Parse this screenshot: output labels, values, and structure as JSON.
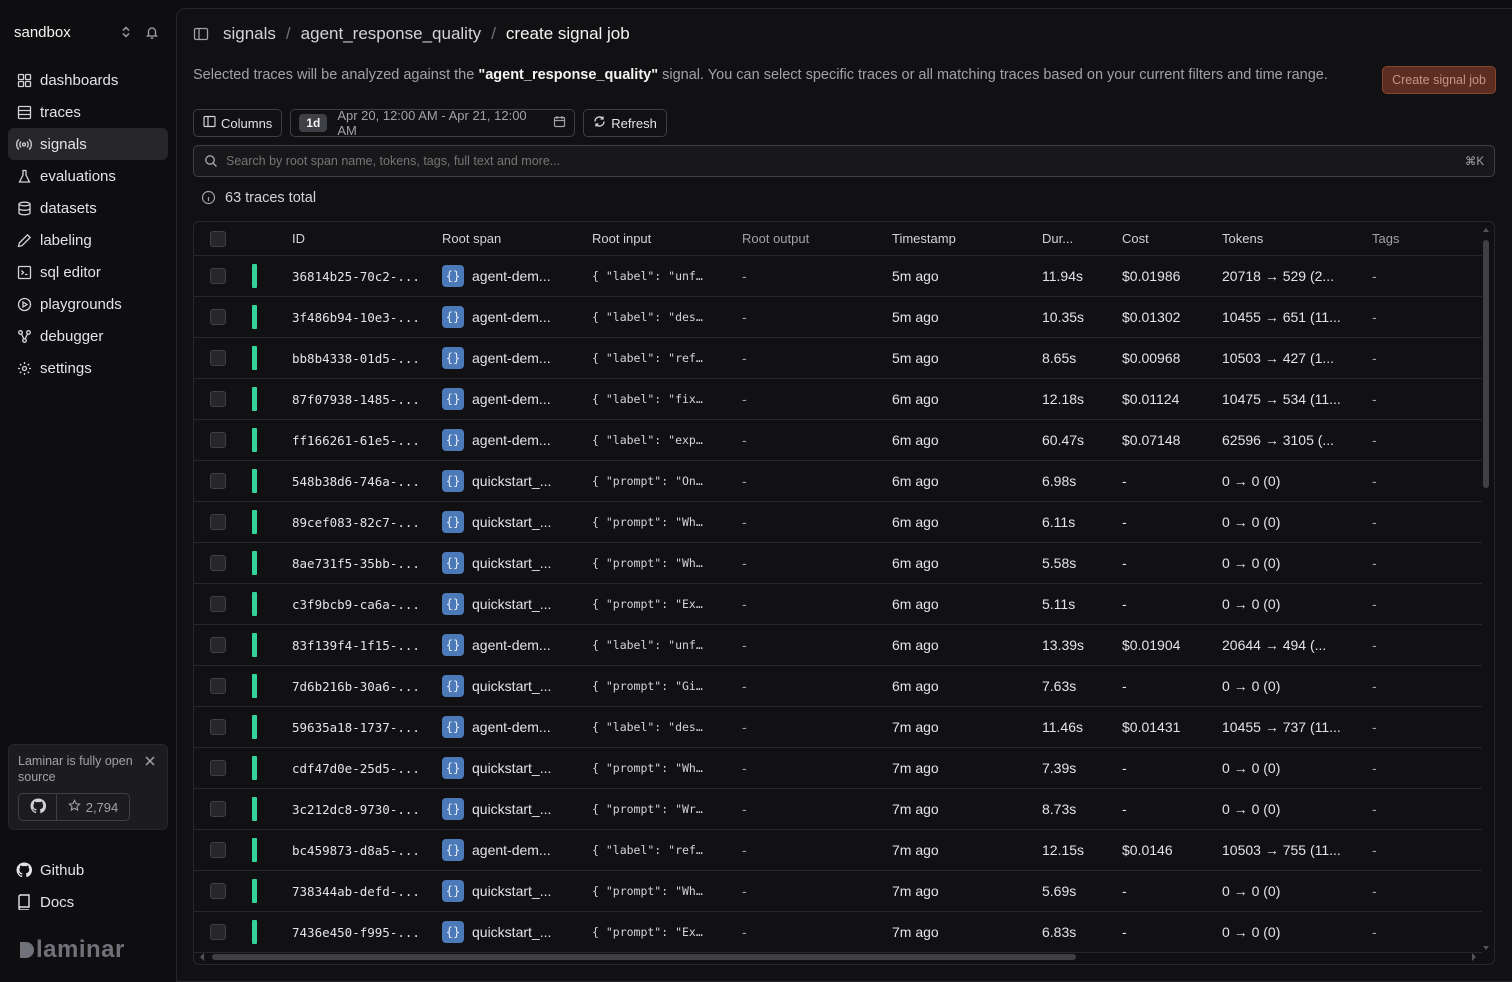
{
  "workspace": {
    "name": "sandbox"
  },
  "nav": {
    "items": [
      {
        "label": "dashboards",
        "icon": "dashboard-icon"
      },
      {
        "label": "traces",
        "icon": "list-icon"
      },
      {
        "label": "signals",
        "icon": "radio-icon",
        "active": true
      },
      {
        "label": "evaluations",
        "icon": "flask-icon"
      },
      {
        "label": "datasets",
        "icon": "database-icon"
      },
      {
        "label": "labeling",
        "icon": "pen-icon"
      },
      {
        "label": "sql editor",
        "icon": "terminal-icon"
      },
      {
        "label": "playgrounds",
        "icon": "play-icon"
      },
      {
        "label": "debugger",
        "icon": "graph-icon"
      },
      {
        "label": "settings",
        "icon": "gear-icon"
      }
    ]
  },
  "promo": {
    "text": "Laminar is fully open source",
    "stars": "2,794"
  },
  "bottom_links": {
    "github": "Github",
    "docs": "Docs"
  },
  "logo": {
    "text": "laminar"
  },
  "breadcrumb": {
    "c1": "signals",
    "c2": "agent_response_quality",
    "c3": "create signal job"
  },
  "description": {
    "prefix": "Selected traces will be analyzed against the ",
    "signal": "\"agent_response_quality\"",
    "suffix": " signal. You can select specific traces or all matching traces based on your current filters and time range."
  },
  "create_button": "Create signal job",
  "toolbar": {
    "columns_label": "Columns",
    "range_pill": "1d",
    "date_range": "Apr 20, 12:00 AM - Apr 21, 12:00 AM",
    "refresh_label": "Refresh"
  },
  "search": {
    "placeholder": "Search by root span name, tokens, tags, full text and more...",
    "shortcut": "⌘K"
  },
  "total_label": "63 traces total",
  "table": {
    "columns": {
      "id": "ID",
      "root_span": "Root span",
      "root_input": "Root input",
      "root_output": "Root output",
      "timestamp": "Timestamp",
      "duration": "Dur...",
      "cost": "Cost",
      "tokens": "Tokens",
      "tags": "Tags"
    },
    "rows": [
      {
        "id": "36814b25-70c2-...",
        "span": "agent-dem...",
        "input": "{ \"label\": \"unf…",
        "output": "-",
        "ts": "5m ago",
        "dur": "11.94s",
        "cost": "$0.01986",
        "tokens": "20718 → 529 (2...",
        "tags": "-"
      },
      {
        "id": "3f486b94-10e3-...",
        "span": "agent-dem...",
        "input": "{ \"label\": \"des…",
        "output": "-",
        "ts": "5m ago",
        "dur": "10.35s",
        "cost": "$0.01302",
        "tokens": "10455 → 651 (11...",
        "tags": "-"
      },
      {
        "id": "bb8b4338-01d5-...",
        "span": "agent-dem...",
        "input": "{ \"label\": \"ref…",
        "output": "-",
        "ts": "5m ago",
        "dur": "8.65s",
        "cost": "$0.00968",
        "tokens": "10503 → 427 (1...",
        "tags": "-"
      },
      {
        "id": "87f07938-1485-...",
        "span": "agent-dem...",
        "input": "{ \"label\": \"fix…",
        "output": "-",
        "ts": "6m ago",
        "dur": "12.18s",
        "cost": "$0.01124",
        "tokens": "10475 → 534 (11...",
        "tags": "-"
      },
      {
        "id": "ff166261-61e5-...",
        "span": "agent-dem...",
        "input": "{ \"label\": \"exp…",
        "output": "-",
        "ts": "6m ago",
        "dur": "60.47s",
        "cost": "$0.07148",
        "tokens": "62596 → 3105 (...",
        "tags": "-"
      },
      {
        "id": "548b38d6-746a-...",
        "span": "quickstart_...",
        "input": "{ \"prompt\": \"On…",
        "output": "-",
        "ts": "6m ago",
        "dur": "6.98s",
        "cost": "-",
        "tokens": "0 → 0 (0)",
        "tags": "-"
      },
      {
        "id": "89cef083-82c7-...",
        "span": "quickstart_...",
        "input": "{ \"prompt\": \"Wh…",
        "output": "-",
        "ts": "6m ago",
        "dur": "6.11s",
        "cost": "-",
        "tokens": "0 → 0 (0)",
        "tags": "-"
      },
      {
        "id": "8ae731f5-35bb-...",
        "span": "quickstart_...",
        "input": "{ \"prompt\": \"Wh…",
        "output": "-",
        "ts": "6m ago",
        "dur": "5.58s",
        "cost": "-",
        "tokens": "0 → 0 (0)",
        "tags": "-"
      },
      {
        "id": "c3f9bcb9-ca6a-...",
        "span": "quickstart_...",
        "input": "{ \"prompt\": \"Ex…",
        "output": "-",
        "ts": "6m ago",
        "dur": "5.11s",
        "cost": "-",
        "tokens": "0 → 0 (0)",
        "tags": "-"
      },
      {
        "id": "83f139f4-1f15-...",
        "span": "agent-dem...",
        "input": "{ \"label\": \"unf…",
        "output": "-",
        "ts": "6m ago",
        "dur": "13.39s",
        "cost": "$0.01904",
        "tokens": "20644 → 494 (...",
        "tags": "-"
      },
      {
        "id": "7d6b216b-30a6-...",
        "span": "quickstart_...",
        "input": "{ \"prompt\": \"Gi…",
        "output": "-",
        "ts": "6m ago",
        "dur": "7.63s",
        "cost": "-",
        "tokens": "0 → 0 (0)",
        "tags": "-"
      },
      {
        "id": "59635a18-1737-...",
        "span": "agent-dem...",
        "input": "{ \"label\": \"des…",
        "output": "-",
        "ts": "7m ago",
        "dur": "11.46s",
        "cost": "$0.01431",
        "tokens": "10455 → 737 (11...",
        "tags": "-"
      },
      {
        "id": "cdf47d0e-25d5-...",
        "span": "quickstart_...",
        "input": "{ \"prompt\": \"Wh…",
        "output": "-",
        "ts": "7m ago",
        "dur": "7.39s",
        "cost": "-",
        "tokens": "0 → 0 (0)",
        "tags": "-"
      },
      {
        "id": "3c212dc8-9730-...",
        "span": "quickstart_...",
        "input": "{ \"prompt\": \"Wr…",
        "output": "-",
        "ts": "7m ago",
        "dur": "8.73s",
        "cost": "-",
        "tokens": "0 → 0 (0)",
        "tags": "-"
      },
      {
        "id": "bc459873-d8a5-...",
        "span": "agent-dem...",
        "input": "{ \"label\": \"ref…",
        "output": "-",
        "ts": "7m ago",
        "dur": "12.15s",
        "cost": "$0.0146",
        "tokens": "10503 → 755 (11...",
        "tags": "-"
      },
      {
        "id": "738344ab-defd-...",
        "span": "quickstart_...",
        "input": "{ \"prompt\": \"Wh…",
        "output": "-",
        "ts": "7m ago",
        "dur": "5.69s",
        "cost": "-",
        "tokens": "0 → 0 (0)",
        "tags": "-"
      },
      {
        "id": "7436e450-f995-...",
        "span": "quickstart_...",
        "input": "{ \"prompt\": \"Ex…",
        "output": "-",
        "ts": "7m ago",
        "dur": "6.83s",
        "cost": "-",
        "tokens": "0 → 0 (0)",
        "tags": "-"
      }
    ]
  },
  "colors": {
    "status_bar": "#34d399",
    "span_badge": "#4c79b8",
    "accent_button": "#5c2e22"
  }
}
